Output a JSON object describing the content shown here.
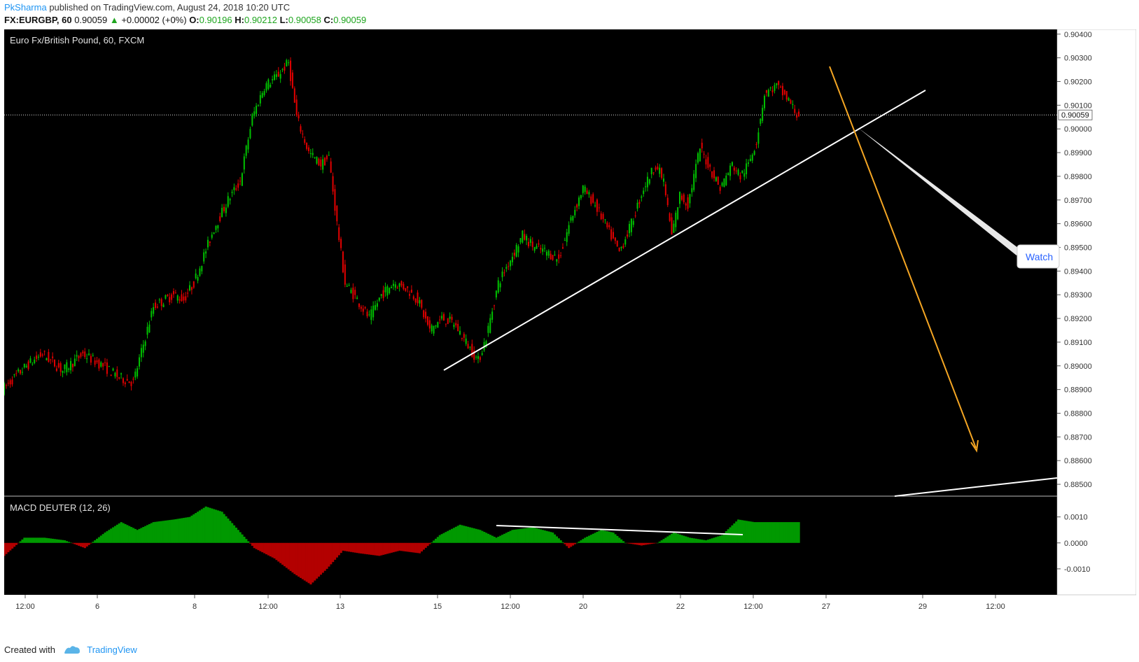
{
  "header": {
    "author": "PkSharma",
    "published": "published on TradingView.com, August 24, 2018 10:20 UTC",
    "symbol": "FX:EURGBP, 60",
    "last": "0.90059",
    "change": "+0.00002 (+0%)",
    "o_label": "O:",
    "o": "0.90196",
    "h_label": "H:",
    "h": "0.90212",
    "l_label": "L:",
    "l": "0.90058",
    "c_label": "C:",
    "c": "0.90059"
  },
  "footer": {
    "created_with": "Created with",
    "brand": "TradingView"
  },
  "colors": {
    "up": "#00c000",
    "down": "#e00000",
    "macd_pos": "#009900",
    "macd_neg": "#b30000",
    "background": "#000000",
    "arrow": "#f5a623"
  },
  "chart_data": [
    {
      "type": "candlestick",
      "title": "Euro Fx/British Pound, 60, FXCM",
      "ylim": [
        0.8845,
        0.9042
      ],
      "y_ticks": [
        "0.90400",
        "0.90300",
        "0.90200",
        "0.90100",
        "0.90000",
        "0.89900",
        "0.89800",
        "0.89700",
        "0.89600",
        "0.89500",
        "0.89400",
        "0.89300",
        "0.89200",
        "0.89100",
        "0.89000",
        "0.88900",
        "0.88800",
        "0.88700",
        "0.88600",
        "0.88500"
      ],
      "x_ticks": [
        "12:00",
        "6",
        "8",
        "12:00",
        "13",
        "15",
        "12:00",
        "20",
        "22",
        "12:00",
        "27",
        "29",
        "12:00"
      ],
      "last_price_label": "0.90059",
      "approx_path": [
        [
          0,
          0.889
        ],
        [
          12,
          0.89
        ],
        [
          20,
          0.8905
        ],
        [
          30,
          0.8898
        ],
        [
          40,
          0.8905
        ],
        [
          50,
          0.89
        ],
        [
          58,
          0.8895
        ],
        [
          65,
          0.8893
        ],
        [
          75,
          0.8925
        ],
        [
          85,
          0.893
        ],
        [
          90,
          0.8928
        ],
        [
          95,
          0.8935
        ],
        [
          105,
          0.8958
        ],
        [
          112,
          0.897
        ],
        [
          118,
          0.8978
        ],
        [
          124,
          0.9005
        ],
        [
          130,
          0.9018
        ],
        [
          136,
          0.9022
        ],
        [
          142,
          0.9028
        ],
        [
          146,
          0.9005
        ],
        [
          152,
          0.899
        ],
        [
          158,
          0.8985
        ],
        [
          162,
          0.8988
        ],
        [
          166,
          0.896
        ],
        [
          170,
          0.8935
        ],
        [
          176,
          0.8928
        ],
        [
          182,
          0.892
        ],
        [
          188,
          0.893
        ],
        [
          194,
          0.8935
        ],
        [
          200,
          0.8933
        ],
        [
          206,
          0.8928
        ],
        [
          212,
          0.8915
        ],
        [
          218,
          0.892
        ],
        [
          224,
          0.8918
        ],
        [
          230,
          0.891
        ],
        [
          236,
          0.8902
        ],
        [
          240,
          0.8912
        ],
        [
          246,
          0.8935
        ],
        [
          252,
          0.8945
        ],
        [
          258,
          0.8955
        ],
        [
          264,
          0.895
        ],
        [
          270,
          0.8948
        ],
        [
          276,
          0.8945
        ],
        [
          282,
          0.8962
        ],
        [
          288,
          0.8975
        ],
        [
          294,
          0.8968
        ],
        [
          300,
          0.8958
        ],
        [
          306,
          0.8948
        ],
        [
          312,
          0.896
        ],
        [
          318,
          0.8975
        ],
        [
          324,
          0.8985
        ],
        [
          328,
          0.8978
        ],
        [
          332,
          0.8955
        ],
        [
          336,
          0.8972
        ],
        [
          340,
          0.8968
        ],
        [
          346,
          0.8992
        ],
        [
          350,
          0.8985
        ],
        [
          356,
          0.8975
        ],
        [
          362,
          0.8985
        ],
        [
          366,
          0.898
        ],
        [
          370,
          0.8985
        ],
        [
          374,
          0.8995
        ],
        [
          378,
          0.9015
        ],
        [
          384,
          0.9018
        ],
        [
          390,
          0.9012
        ],
        [
          394,
          0.9006
        ]
      ]
    },
    {
      "type": "histogram",
      "title": "MACD DEUTER (12, 26)",
      "ylim": [
        -0.002,
        0.0018
      ],
      "y_ticks": [
        "0.0010",
        "0.0000",
        "-0.0010"
      ],
      "approx_values": [
        [
          0,
          -0.0005
        ],
        [
          10,
          0.0002
        ],
        [
          20,
          0.0002
        ],
        [
          30,
          0.0001
        ],
        [
          40,
          -0.0002
        ],
        [
          50,
          0.0004
        ],
        [
          58,
          0.0008
        ],
        [
          66,
          0.0005
        ],
        [
          74,
          0.0008
        ],
        [
          84,
          0.0009
        ],
        [
          92,
          0.001
        ],
        [
          100,
          0.0014
        ],
        [
          108,
          0.0012
        ],
        [
          116,
          0.0005
        ],
        [
          124,
          -0.0002
        ],
        [
          134,
          -0.0006
        ],
        [
          144,
          -0.0012
        ],
        [
          152,
          -0.0016
        ],
        [
          160,
          -0.001
        ],
        [
          168,
          -0.0003
        ],
        [
          176,
          -0.0004
        ],
        [
          186,
          -0.0005
        ],
        [
          196,
          -0.0003
        ],
        [
          206,
          -0.0004
        ],
        [
          216,
          0.0003
        ],
        [
          226,
          0.0007
        ],
        [
          236,
          0.0005
        ],
        [
          244,
          0.0002
        ],
        [
          252,
          0.0005
        ],
        [
          262,
          0.0006
        ],
        [
          272,
          0.0004
        ],
        [
          280,
          -0.0002
        ],
        [
          288,
          0.0002
        ],
        [
          296,
          0.0005
        ],
        [
          302,
          0.0004
        ],
        [
          308,
          0.0
        ],
        [
          316,
          -0.0001
        ],
        [
          324,
          0.0
        ],
        [
          332,
          0.0004
        ],
        [
          340,
          0.0002
        ],
        [
          348,
          0.0001
        ],
        [
          356,
          0.0003
        ],
        [
          364,
          0.0009
        ],
        [
          372,
          0.0008
        ],
        [
          380,
          0.0008
        ]
      ]
    }
  ],
  "annotations": {
    "watch_label": "Watch"
  }
}
